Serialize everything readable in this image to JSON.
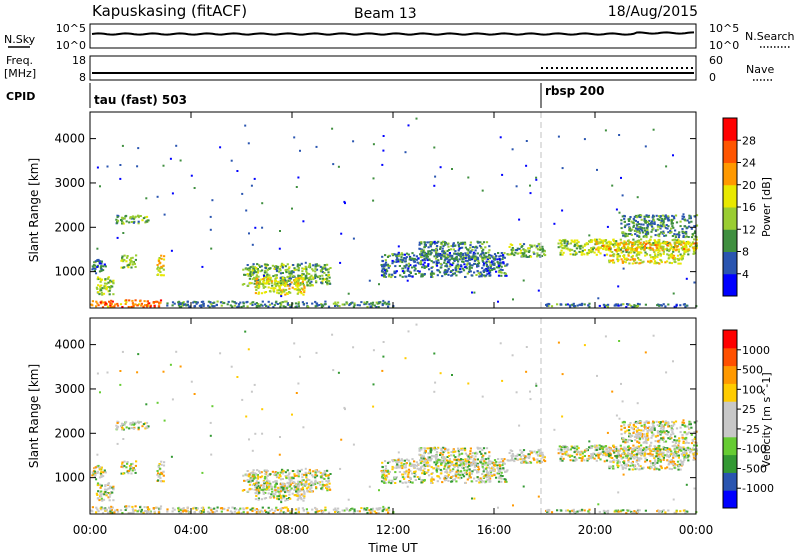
{
  "header": {
    "station": "Kapuskasing (fitACF)",
    "beam": "Beam 13",
    "date": "18/Aug/2015"
  },
  "nsky_panel": {
    "left_label": "N.Sky",
    "left_ticks": [
      "10^5",
      "10^0"
    ],
    "right_ticks": [
      "10^5",
      "10^0"
    ],
    "right_label": "N.Search"
  },
  "freq_panel": {
    "left_label_1": "Freq.",
    "left_label_2": "[MHz]",
    "left_ticks": [
      "18",
      "8"
    ],
    "right_ticks": [
      "60",
      "0"
    ],
    "right_label": "Nave"
  },
  "cpid": {
    "label": "CPID",
    "modes": [
      {
        "name": "tau (fast) 503",
        "start_hour": 0
      },
      {
        "name": "rbsp 200",
        "start_hour": 18
      }
    ]
  },
  "colors": {
    "power": [
      "#0000ff",
      "#2a55b0",
      "#3f8f3f",
      "#9acd32",
      "#e8e800",
      "#ff9900",
      "#ff5500",
      "#ff0000"
    ],
    "velocity": [
      "#ff0000",
      "#ff5000",
      "#ff9900",
      "#ffcc00",
      "#c8c8c8",
      "#c8c8c8",
      "#66cc33",
      "#339933",
      "#2a55b0",
      "#0000ff"
    ],
    "noise_line": "#000000",
    "dashed_marker": "#c0c0c0"
  },
  "chart_data": [
    {
      "type": "heatmap",
      "title": "",
      "xlabel": "",
      "ylabel": "Slant Range [km]",
      "xlim": [
        0,
        24
      ],
      "ylim": [
        180,
        4600
      ],
      "y_ticks": [
        "1000",
        "2000",
        "3000",
        "4000"
      ],
      "colorbar_label": "Power [dB]",
      "colorbar_ticks": [
        "4",
        "8",
        "12",
        "16",
        "20",
        "24",
        "28"
      ],
      "colorbar_range": [
        0,
        32
      ],
      "scatter_regions": [
        {
          "t": [
            0.0,
            0.6
          ],
          "r": [
            1000,
            1300
          ],
          "v": 8
        },
        {
          "t": [
            0.2,
            0.9
          ],
          "r": [
            500,
            900
          ],
          "v": 14
        },
        {
          "t": [
            0.0,
            2.8
          ],
          "r": [
            220,
            380
          ],
          "v": 24
        },
        {
          "t": [
            1.0,
            2.3
          ],
          "r": [
            2100,
            2300
          ],
          "v": 12
        },
        {
          "t": [
            1.2,
            1.8
          ],
          "r": [
            1100,
            1400
          ],
          "v": 13
        },
        {
          "t": [
            2.6,
            2.9
          ],
          "r": [
            900,
            1400
          ],
          "v": 18
        },
        {
          "t": [
            6.0,
            9.5
          ],
          "r": [
            700,
            1200
          ],
          "v": 12
        },
        {
          "t": [
            6.5,
            8.5
          ],
          "r": [
            500,
            900
          ],
          "v": 17
        },
        {
          "t": [
            3.0,
            12.0
          ],
          "r": [
            220,
            350
          ],
          "v": 9
        },
        {
          "t": [
            11.5,
            16.5
          ],
          "r": [
            900,
            1450
          ],
          "v": 8
        },
        {
          "t": [
            13.0,
            15.8
          ],
          "r": [
            1300,
            1700
          ],
          "v": 9
        },
        {
          "t": [
            16.5,
            18.0
          ],
          "r": [
            1350,
            1650
          ],
          "v": 12
        },
        {
          "t": [
            18.5,
            24.0
          ],
          "r": [
            1400,
            1750
          ],
          "v": 15
        },
        {
          "t": [
            20.0,
            24.0
          ],
          "r": [
            1500,
            1700
          ],
          "v": 20
        },
        {
          "t": [
            20.5,
            23.5
          ],
          "r": [
            1200,
            1400
          ],
          "v": 17
        },
        {
          "t": [
            18.0,
            24.0
          ],
          "r": [
            220,
            300
          ],
          "v": 8
        },
        {
          "t": [
            21.0,
            24.0
          ],
          "r": [
            1800,
            2300
          ],
          "v": 9
        }
      ]
    },
    {
      "type": "heatmap",
      "title": "",
      "xlabel": "Time UT",
      "ylabel": "Slant Range [km]",
      "xlim": [
        0,
        24
      ],
      "ylim": [
        180,
        4600
      ],
      "x_ticks": [
        "00:00",
        "04:00",
        "08:00",
        "12:00",
        "16:00",
        "20:00",
        "00:00"
      ],
      "y_ticks": [
        "1000",
        "2000",
        "3000",
        "4000"
      ],
      "colorbar_label": "Velocity [m s^-1]",
      "colorbar_ticks": [
        "1000",
        "500",
        "100",
        "25",
        "-25",
        "-100",
        "-500",
        "-1000"
      ]
    }
  ]
}
